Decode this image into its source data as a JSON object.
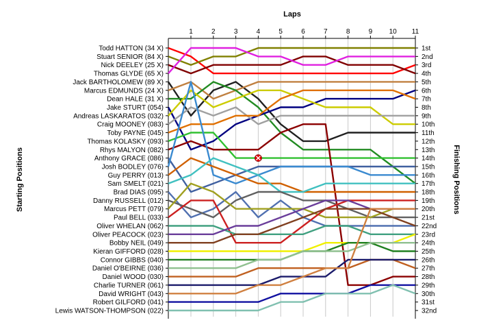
{
  "chart_data": {
    "type": "line",
    "title": "",
    "xlabel": "Laps",
    "ylabel_left": "Starting Positions",
    "ylabel_right": "Finishing Positions",
    "laps": [
      1,
      2,
      3,
      4,
      5,
      6,
      7,
      8,
      9,
      10,
      11
    ],
    "positions": 32,
    "grid": "vertical",
    "starting_order": [
      "Todd HATTON (34 X)",
      "Stuart SENIOR (84 X)",
      "Nick DEELEY (25 X)",
      "Thomas GLYDE (65 X)",
      "Jack BARTHOLOMEW (89 X)",
      "Marcus EDMUNDS (24 X)",
      "Dean HALE (31 X)",
      "Jake STURT (054)",
      "Andreas LASKARATOS (032)",
      "Craig MOONEY (083)",
      "Toby PAYNE (045)",
      "Thomas KOLASKY (093)",
      "Rhys MALYON (082)",
      "Anthony GRACE (086)",
      "Josh BODLEY (076)",
      "Guy PERRY (013)",
      "Sam SMELT (021)",
      "Brad DIAS (095)",
      "Danny RUSSELL (012)",
      "Marcus PETT (079)",
      "Paul BELL (033)",
      "Oliver WHELAN (062)",
      "Oliver PEACOCK (023)",
      "Bobby NEIL (049)",
      "Kieran GIFFORD (028)",
      "Connor GIBBS (040)",
      "Daniel O'BEIRNE (036)",
      "Daniel WOOD (030)",
      "Charlie TURNER (061)",
      "David WRIGHT (043)",
      "Robert GILFORD (041)",
      "Lewis WATSON-THOMPSON (022)"
    ],
    "finishing_labels": [
      "1st",
      "2nd",
      "3rd",
      "4th",
      "5th",
      "6th",
      "7th",
      "8th",
      "9th",
      "10th",
      "11th",
      "12th",
      "13th",
      "14th",
      "15th",
      "16th",
      "17th",
      "18th",
      "19th",
      "20th",
      "21st",
      "22nd",
      "23rd",
      "24th",
      "25th",
      "26th",
      "27th",
      "28th",
      "29th",
      "30th",
      "31st",
      "32nd"
    ],
    "series": [
      {
        "start": 1,
        "color": "#ff0000",
        "positions": [
          2,
          4,
          4,
          4,
          4,
          4,
          4,
          4,
          4,
          4,
          3
        ]
      },
      {
        "start": 2,
        "color": "#808000",
        "positions": [
          3,
          2,
          2,
          1,
          1,
          1,
          1,
          1,
          1,
          1,
          1
        ]
      },
      {
        "start": 3,
        "color": "#800000",
        "positions": [
          4,
          3,
          3,
          3,
          3,
          2,
          2,
          3,
          3,
          3,
          4
        ]
      },
      {
        "start": 4,
        "color": "#e020e0",
        "positions": [
          1,
          1,
          1,
          2,
          2,
          3,
          3,
          2,
          2,
          2,
          2
        ]
      },
      {
        "start": 5,
        "color": "#202020",
        "positions": [
          9,
          6,
          5,
          7,
          10,
          12,
          12,
          11,
          11,
          11,
          11
        ]
      },
      {
        "start": 6,
        "color": "#c08040",
        "positions": [
          5,
          7,
          6,
          5,
          5,
          5,
          5,
          5,
          5,
          5,
          5
        ]
      },
      {
        "start": 7,
        "color": "#228b22",
        "positions": [
          7,
          5,
          6,
          8,
          11,
          13,
          13,
          13,
          13,
          15,
          17
        ]
      },
      {
        "start": 8,
        "color": "#000080",
        "positions": [
          13,
          12,
          10,
          9,
          8,
          8,
          7,
          7,
          7,
          7,
          6
        ]
      },
      {
        "start": 9,
        "color": "#cccc00",
        "positions": [
          6,
          8,
          7,
          6,
          6,
          7,
          8,
          8,
          8,
          10,
          10
        ]
      },
      {
        "start": 10,
        "color": "#a0a0a0",
        "positions": [
          8,
          9,
          8,
          10,
          9,
          9,
          9,
          9,
          9,
          9,
          9
        ]
      },
      {
        "start": 11,
        "color": "#e07000",
        "positions": [
          10,
          10,
          9,
          9,
          7,
          6,
          6,
          6,
          6,
          6,
          7
        ]
      },
      {
        "start": 12,
        "color": "#30c030",
        "positions": [
          11,
          11,
          14,
          14,
          14,
          14,
          14,
          14,
          14,
          14,
          14
        ]
      },
      {
        "start": 13,
        "color": "#8b0000",
        "positions": [
          12,
          13,
          13,
          13,
          11,
          10,
          10,
          29,
          29,
          28,
          28
        ]
      },
      {
        "start": 14,
        "color": "#4060a0",
        "positions": [
          18,
          17,
          16,
          15,
          15,
          15,
          15,
          15,
          15,
          15,
          15
        ]
      },
      {
        "start": 15,
        "color": "#3a8ad0",
        "positions": [
          5,
          16,
          17,
          16,
          15,
          15,
          15,
          15,
          16,
          16,
          16
        ]
      },
      {
        "start": 16,
        "color": "#d06000",
        "positions": [
          14,
          15,
          16,
          17,
          17,
          18,
          18,
          18,
          18,
          18,
          18
        ]
      },
      {
        "start": 17,
        "color": "#40c0c0",
        "positions": [
          16,
          14,
          15,
          16,
          18,
          18,
          17,
          17,
          17,
          17,
          17
        ]
      },
      {
        "start": 18,
        "color": "#5070b0",
        "positions": [
          21,
          20,
          18,
          21,
          19,
          21,
          22,
          22,
          22,
          22,
          22
        ]
      },
      {
        "start": 19,
        "color": "#606060",
        "positions": [
          20,
          21,
          19,
          18,
          18,
          19,
          19,
          20,
          21,
          21,
          21
        ]
      },
      {
        "start": 20,
        "color": "#a0a020",
        "positions": [
          17,
          18,
          20,
          20,
          20,
          20,
          21,
          21,
          21,
          20,
          20
        ]
      },
      {
        "start": 21,
        "color": "#cc2020",
        "positions": [
          19,
          19,
          24,
          24,
          24,
          22,
          20,
          19,
          19,
          19,
          19
        ]
      },
      {
        "start": 22,
        "color": "#40a080",
        "positions": [
          22,
          22,
          23,
          23,
          23,
          23,
          22,
          22,
          23,
          23,
          23
        ]
      },
      {
        "start": 23,
        "color": "#6a3d9a",
        "positions": [
          23,
          23,
          22,
          22,
          21,
          20,
          19,
          19,
          20,
          20,
          20
        ]
      },
      {
        "start": 24,
        "color": "#804020",
        "positions": [
          24,
          24,
          23,
          23,
          22,
          21,
          20,
          20,
          20,
          21,
          22
        ]
      },
      {
        "start": 25,
        "color": "#f0f000",
        "positions": [
          25,
          25,
          25,
          25,
          25,
          25,
          24,
          24,
          24,
          24,
          23
        ]
      },
      {
        "start": 26,
        "color": "#208020",
        "positions": [
          26,
          26,
          26,
          26,
          26,
          25,
          25,
          24,
          24,
          25,
          25
        ]
      },
      {
        "start": 27,
        "color": "#90c090",
        "positions": [
          27,
          27,
          27,
          26,
          26,
          25,
          25,
          25,
          24,
          24,
          24
        ]
      },
      {
        "start": 28,
        "color": "#c06020",
        "positions": [
          28,
          28,
          28,
          27,
          27,
          27,
          27,
          27,
          26,
          26,
          27
        ]
      },
      {
        "start": 29,
        "color": "#1a1a6a",
        "positions": [
          29,
          29,
          29,
          29,
          28,
          28,
          28,
          26,
          26,
          26,
          26
        ]
      },
      {
        "start": 30,
        "color": "#d08040",
        "positions": [
          30,
          30,
          30,
          29,
          29,
          28,
          27,
          27,
          20,
          20,
          20
        ]
      },
      {
        "start": 31,
        "color": "#1010a0",
        "positions": [
          31,
          31,
          31,
          31,
          30,
          30,
          30,
          30,
          29,
          29,
          29
        ]
      },
      {
        "start": 32,
        "color": "#80c0b0",
        "positions": [
          32,
          32,
          32,
          32,
          31,
          31,
          30,
          30,
          30,
          29,
          30
        ]
      }
    ],
    "annotations": [
      {
        "type": "incident-marker",
        "series_start": 12,
        "lap": 4,
        "position": 14,
        "color": "#e00000"
      }
    ]
  }
}
